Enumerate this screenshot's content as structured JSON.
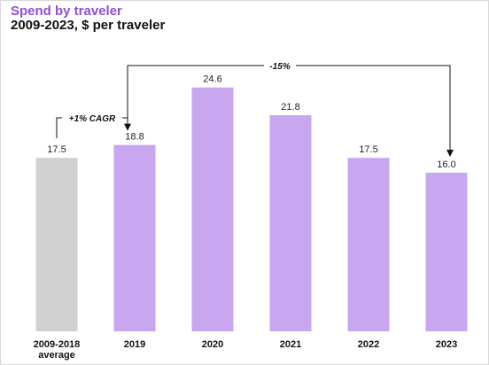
{
  "header": {
    "title": "Spend by traveler",
    "subtitle": "2009-2023, $ per traveler"
  },
  "colors": {
    "title": "#8f4fd6",
    "average_bar": "#d0d0d0",
    "year_bar": "#c8a6f0"
  },
  "chart_data": {
    "type": "bar",
    "title": "Spend by traveler",
    "subtitle": "2009-2023, $ per traveler",
    "categories": [
      "2009-2018\naverage",
      "2019",
      "2020",
      "2021",
      "2022",
      "2023"
    ],
    "values": [
      17.5,
      18.8,
      24.6,
      21.8,
      17.5,
      16.0
    ],
    "value_labels": [
      "17.5",
      "18.8",
      "24.6",
      "21.8",
      "17.5",
      "16.0"
    ],
    "ylim": [
      0,
      26
    ],
    "grid": false,
    "xlabel": "",
    "ylabel": "",
    "annotations": [
      {
        "text": "+1% CAGR",
        "from": "2009-2018\naverage",
        "to": "2019"
      },
      {
        "text": "-15%",
        "from": "2019",
        "to": "2023"
      }
    ]
  }
}
